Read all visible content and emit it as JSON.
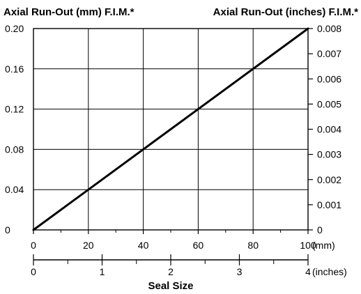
{
  "chart_data": {
    "type": "line",
    "left_axis_title": "Axial Run-Out (mm) F.I.M.*",
    "right_axis_title": "Axial Run-Out (inches) F.I.M.*",
    "xlabel": "Seal Size",
    "x_mm_ticks": [
      "0",
      "20",
      "40",
      "60",
      "80",
      "100"
    ],
    "x_mm_unit": "(mm)",
    "x_inch_ticks": [
      "0",
      "1",
      "2",
      "3",
      "4"
    ],
    "x_inch_unit": "(inches)",
    "y_mm_ticks": [
      "0",
      "0.04",
      "0.08",
      "0.12",
      "0.16",
      "0.20"
    ],
    "y_inch_ticks": [
      "0",
      "0.001",
      "0.002",
      "0.003",
      "0.004",
      "0.005",
      "0.006",
      "0.007",
      "0.008"
    ],
    "xlim": [
      0,
      100
    ],
    "ylim": [
      0,
      0.2
    ],
    "grid": true,
    "series": [
      {
        "x": [
          0,
          100
        ],
        "y": [
          0,
          0.2
        ]
      }
    ]
  }
}
